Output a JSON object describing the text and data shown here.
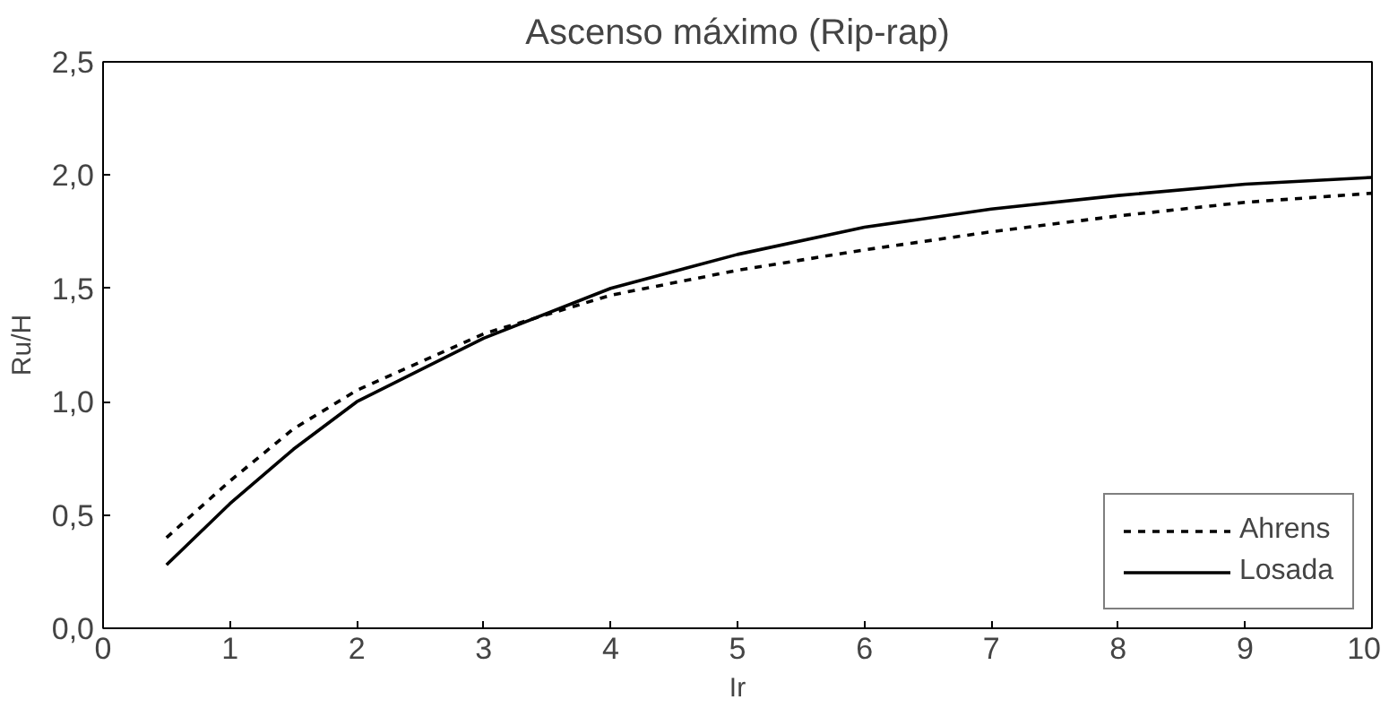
{
  "chart_data": {
    "type": "line",
    "title": "Ascenso máximo (Rip-rap)",
    "xlabel": "Ir",
    "ylabel": "Ru/H",
    "xlim": [
      0,
      10
    ],
    "xticks": [
      0,
      1,
      2,
      3,
      4,
      5,
      6,
      7,
      8,
      9,
      10
    ],
    "ylim": [
      0,
      2.5
    ],
    "yticks": [
      {
        "value": 0,
        "label": "0,0"
      },
      {
        "value": 0.5,
        "label": "0,5"
      },
      {
        "value": 1,
        "label": "1,0"
      },
      {
        "value": 1.5,
        "label": "1,5"
      },
      {
        "value": 2,
        "label": "2,0"
      },
      {
        "value": 2.5,
        "label": "2,5"
      }
    ],
    "grid": false,
    "legend": "bottom right",
    "marker": "none",
    "series": [
      {
        "name": "Ahrens",
        "color": "#000000",
        "line_style": "dashed",
        "x": [
          0.5,
          1,
          1.5,
          2,
          3,
          4,
          5,
          6,
          7,
          8,
          9,
          10
        ],
        "values": [
          0.4,
          0.65,
          0.88,
          1.05,
          1.3,
          1.47,
          1.58,
          1.67,
          1.75,
          1.82,
          1.88,
          1.92
        ]
      },
      {
        "name": "Losada",
        "color": "#000000",
        "line_style": "solid",
        "x": [
          0.5,
          1,
          1.5,
          2,
          3,
          4,
          5,
          6,
          7,
          8,
          9,
          10
        ],
        "values": [
          0.28,
          0.55,
          0.79,
          1.0,
          1.28,
          1.5,
          1.65,
          1.77,
          1.85,
          1.91,
          1.96,
          1.99
        ]
      }
    ]
  }
}
